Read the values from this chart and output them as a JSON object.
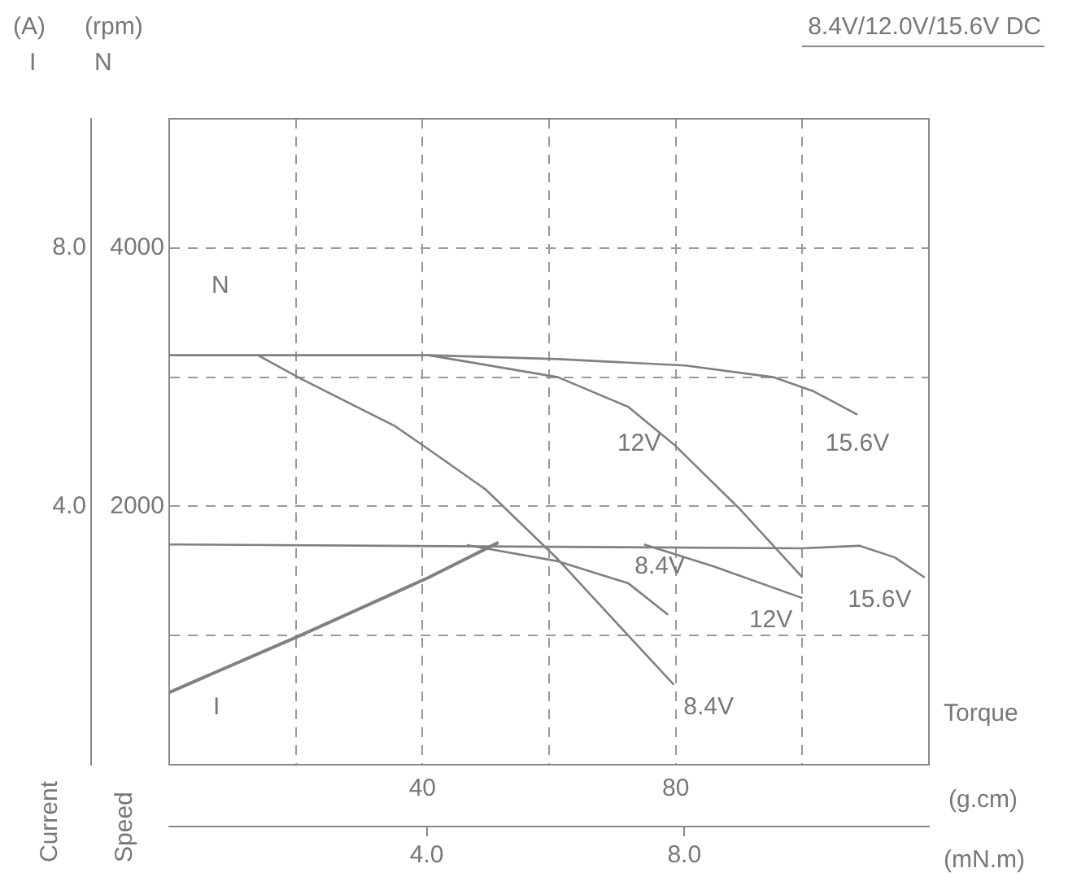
{
  "chart_data": {
    "type": "line",
    "title": "8.4V/12.0V/15.6V DC",
    "xlabel": "Torque",
    "ylabel": "Speed",
    "y2label": "Current",
    "annotations": [
      "(A)",
      "I",
      "(rpm)",
      "N",
      "(g.cm)",
      "(mN.m)",
      "N",
      "I"
    ],
    "xlim": [
      0,
      120
    ],
    "xticks": [
      {
        "value": 20,
        "label": null
      },
      40,
      {
        "value": 60,
        "label": null
      },
      80,
      {
        "value": 100,
        "label": null
      }
    ],
    "x2lim": [
      0,
      11.8
    ],
    "x2ticks": [
      {
        "value": 4,
        "label": "4.0"
      },
      {
        "value": 8,
        "label": "8.0"
      }
    ],
    "ylim": [
      0,
      5000
    ],
    "yticks": [
      {
        "value": 1000,
        "label": null
      },
      2000,
      {
        "value": 3000,
        "label": null
      },
      4000
    ],
    "y2lim": [
      0,
      10
    ],
    "y2ticks": [
      {
        "value": 4,
        "label": "4.0"
      },
      {
        "value": 8,
        "label": "8.0"
      }
    ],
    "grid": true,
    "legend": false,
    "marker": "none",
    "line_style": "solid",
    "series": [
      {
        "name": "8.4V",
        "color": "#808080",
        "x": [
          14,
          20.7,
          35.7,
          41,
          50,
          61.4,
          72.5,
          79.7
        ],
        "values": [
          3170,
          2990,
          2620,
          2440,
          2130,
          1590,
          1000,
          620
        ]
      },
      {
        "name": "12V",
        "color": "#808080",
        "x": [
          41,
          61.4,
          72.5,
          79.7,
          89.9,
          100
        ],
        "values": [
          3170,
          3000,
          2770,
          2480,
          1990,
          1450
        ]
      },
      {
        "name": "15.6V",
        "color": "#808080",
        "x": [
          0,
          41,
          61.4,
          81.5,
          95.4,
          101.8,
          108.7
        ],
        "values": [
          3170,
          3170,
          3140,
          3090,
          3000,
          2890,
          2710
        ]
      },
      {
        "name": "8.4V",
        "color": "#808080",
        "axis": "y2",
        "x": [
          47,
          61.4,
          72.5,
          78.8
        ],
        "values": [
          3.4,
          3.15,
          2.81,
          2.32
        ]
      },
      {
        "name": "12V",
        "color": "#808080",
        "axis": "y2",
        "x": [
          75,
          86,
          100
        ],
        "values": [
          3.41,
          3.07,
          2.58
        ]
      },
      {
        "name": "15.6V",
        "color": "#808080",
        "axis": "y2",
        "x": [
          0,
          100,
          109,
          114.6,
          119.3
        ],
        "values": [
          3.41,
          3.35,
          3.39,
          3.21,
          2.9
        ]
      },
      {
        "color": "#808080",
        "axis": "y2",
        "x": [
          0,
          20.7,
          41,
          52
        ],
        "values": [
          1.12,
          2.0,
          2.9,
          3.44
        ]
      }
    ]
  }
}
